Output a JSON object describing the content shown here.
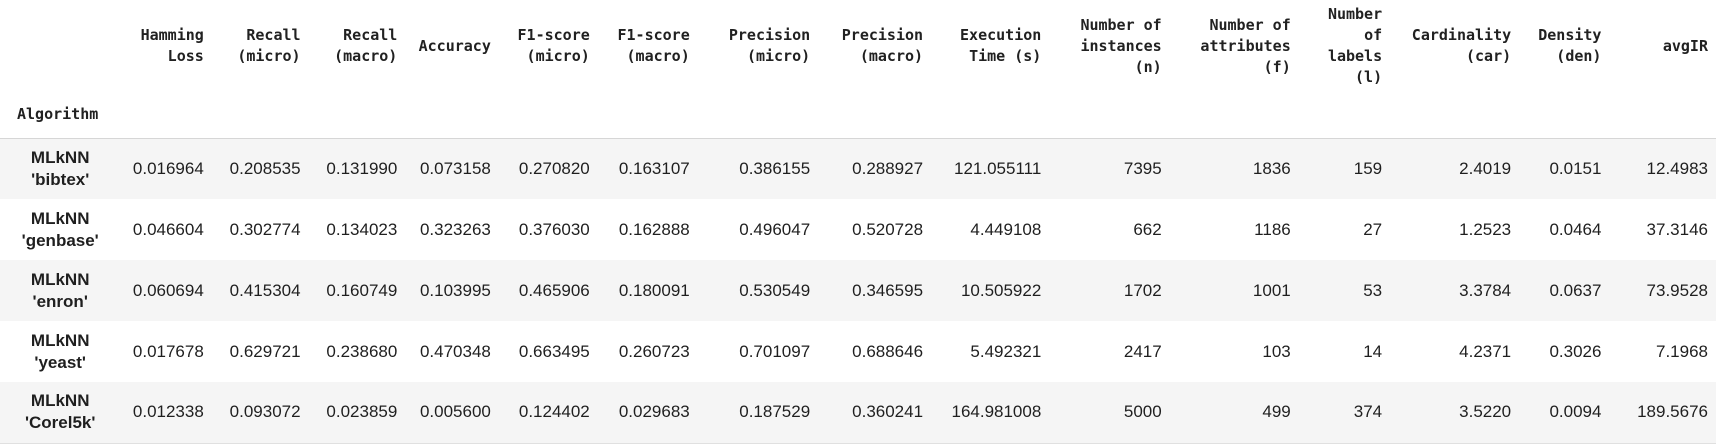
{
  "table": {
    "index_name": "Algorithm",
    "columns": [
      {
        "line1": "Hamming",
        "line2": "Loss",
        "line3": "",
        "line4": ""
      },
      {
        "line1": "Recall",
        "line2": "(micro)",
        "line3": "",
        "line4": ""
      },
      {
        "line1": "Recall",
        "line2": "(macro)",
        "line3": "",
        "line4": ""
      },
      {
        "line1": "Accuracy",
        "line2": "",
        "line3": "",
        "line4": ""
      },
      {
        "line1": "F1-score",
        "line2": "(micro)",
        "line3": "",
        "line4": ""
      },
      {
        "line1": "F1-score",
        "line2": "(macro)",
        "line3": "",
        "line4": ""
      },
      {
        "line1": "Precision",
        "line2": "(micro)",
        "line3": "",
        "line4": ""
      },
      {
        "line1": "Precision",
        "line2": "(macro)",
        "line3": "",
        "line4": ""
      },
      {
        "line1": "Execution",
        "line2": "Time (s)",
        "line3": "",
        "line4": ""
      },
      {
        "line1": "Number of",
        "line2": "instances",
        "line3": "(n)",
        "line4": ""
      },
      {
        "line1": "Number of",
        "line2": "attributes",
        "line3": "(f)",
        "line4": ""
      },
      {
        "line1": "Number",
        "line2": "of",
        "line3": "labels",
        "line4": "(l)"
      },
      {
        "line1": "Cardinality",
        "line2": "(car)",
        "line3": "",
        "line4": ""
      },
      {
        "line1": "Density",
        "line2": "(den)",
        "line3": "",
        "line4": ""
      },
      {
        "line1": "avgIR",
        "line2": "",
        "line3": "",
        "line4": ""
      }
    ],
    "rows": [
      {
        "algorithm": "MLkNN",
        "dataset": "'bibtex'",
        "values": [
          "0.016964",
          "0.208535",
          "0.131990",
          "0.073158",
          "0.270820",
          "0.163107",
          "0.386155",
          "0.288927",
          "121.055111",
          "7395",
          "1836",
          "159",
          "2.4019",
          "0.0151",
          "12.4983"
        ]
      },
      {
        "algorithm": "MLkNN",
        "dataset": "'genbase'",
        "values": [
          "0.046604",
          "0.302774",
          "0.134023",
          "0.323263",
          "0.376030",
          "0.162888",
          "0.496047",
          "0.520728",
          "4.449108",
          "662",
          "1186",
          "27",
          "1.2523",
          "0.0464",
          "37.3146"
        ]
      },
      {
        "algorithm": "MLkNN",
        "dataset": "'enron'",
        "values": [
          "0.060694",
          "0.415304",
          "0.160749",
          "0.103995",
          "0.465906",
          "0.180091",
          "0.530549",
          "0.346595",
          "10.505922",
          "1702",
          "1001",
          "53",
          "3.3784",
          "0.0637",
          "73.9528"
        ]
      },
      {
        "algorithm": "MLkNN",
        "dataset": "'yeast'",
        "values": [
          "0.017678",
          "0.629721",
          "0.238680",
          "0.470348",
          "0.663495",
          "0.260723",
          "0.701097",
          "0.688646",
          "5.492321",
          "2417",
          "103",
          "14",
          "4.2371",
          "0.3026",
          "7.1968"
        ]
      },
      {
        "algorithm": "MLkNN",
        "dataset": "'Corel5k'",
        "values": [
          "0.012338",
          "0.093072",
          "0.023859",
          "0.005600",
          "0.124402",
          "0.029683",
          "0.187529",
          "0.360241",
          "164.981008",
          "5000",
          "499",
          "374",
          "3.5220",
          "0.0094",
          "189.5676"
        ]
      }
    ]
  }
}
